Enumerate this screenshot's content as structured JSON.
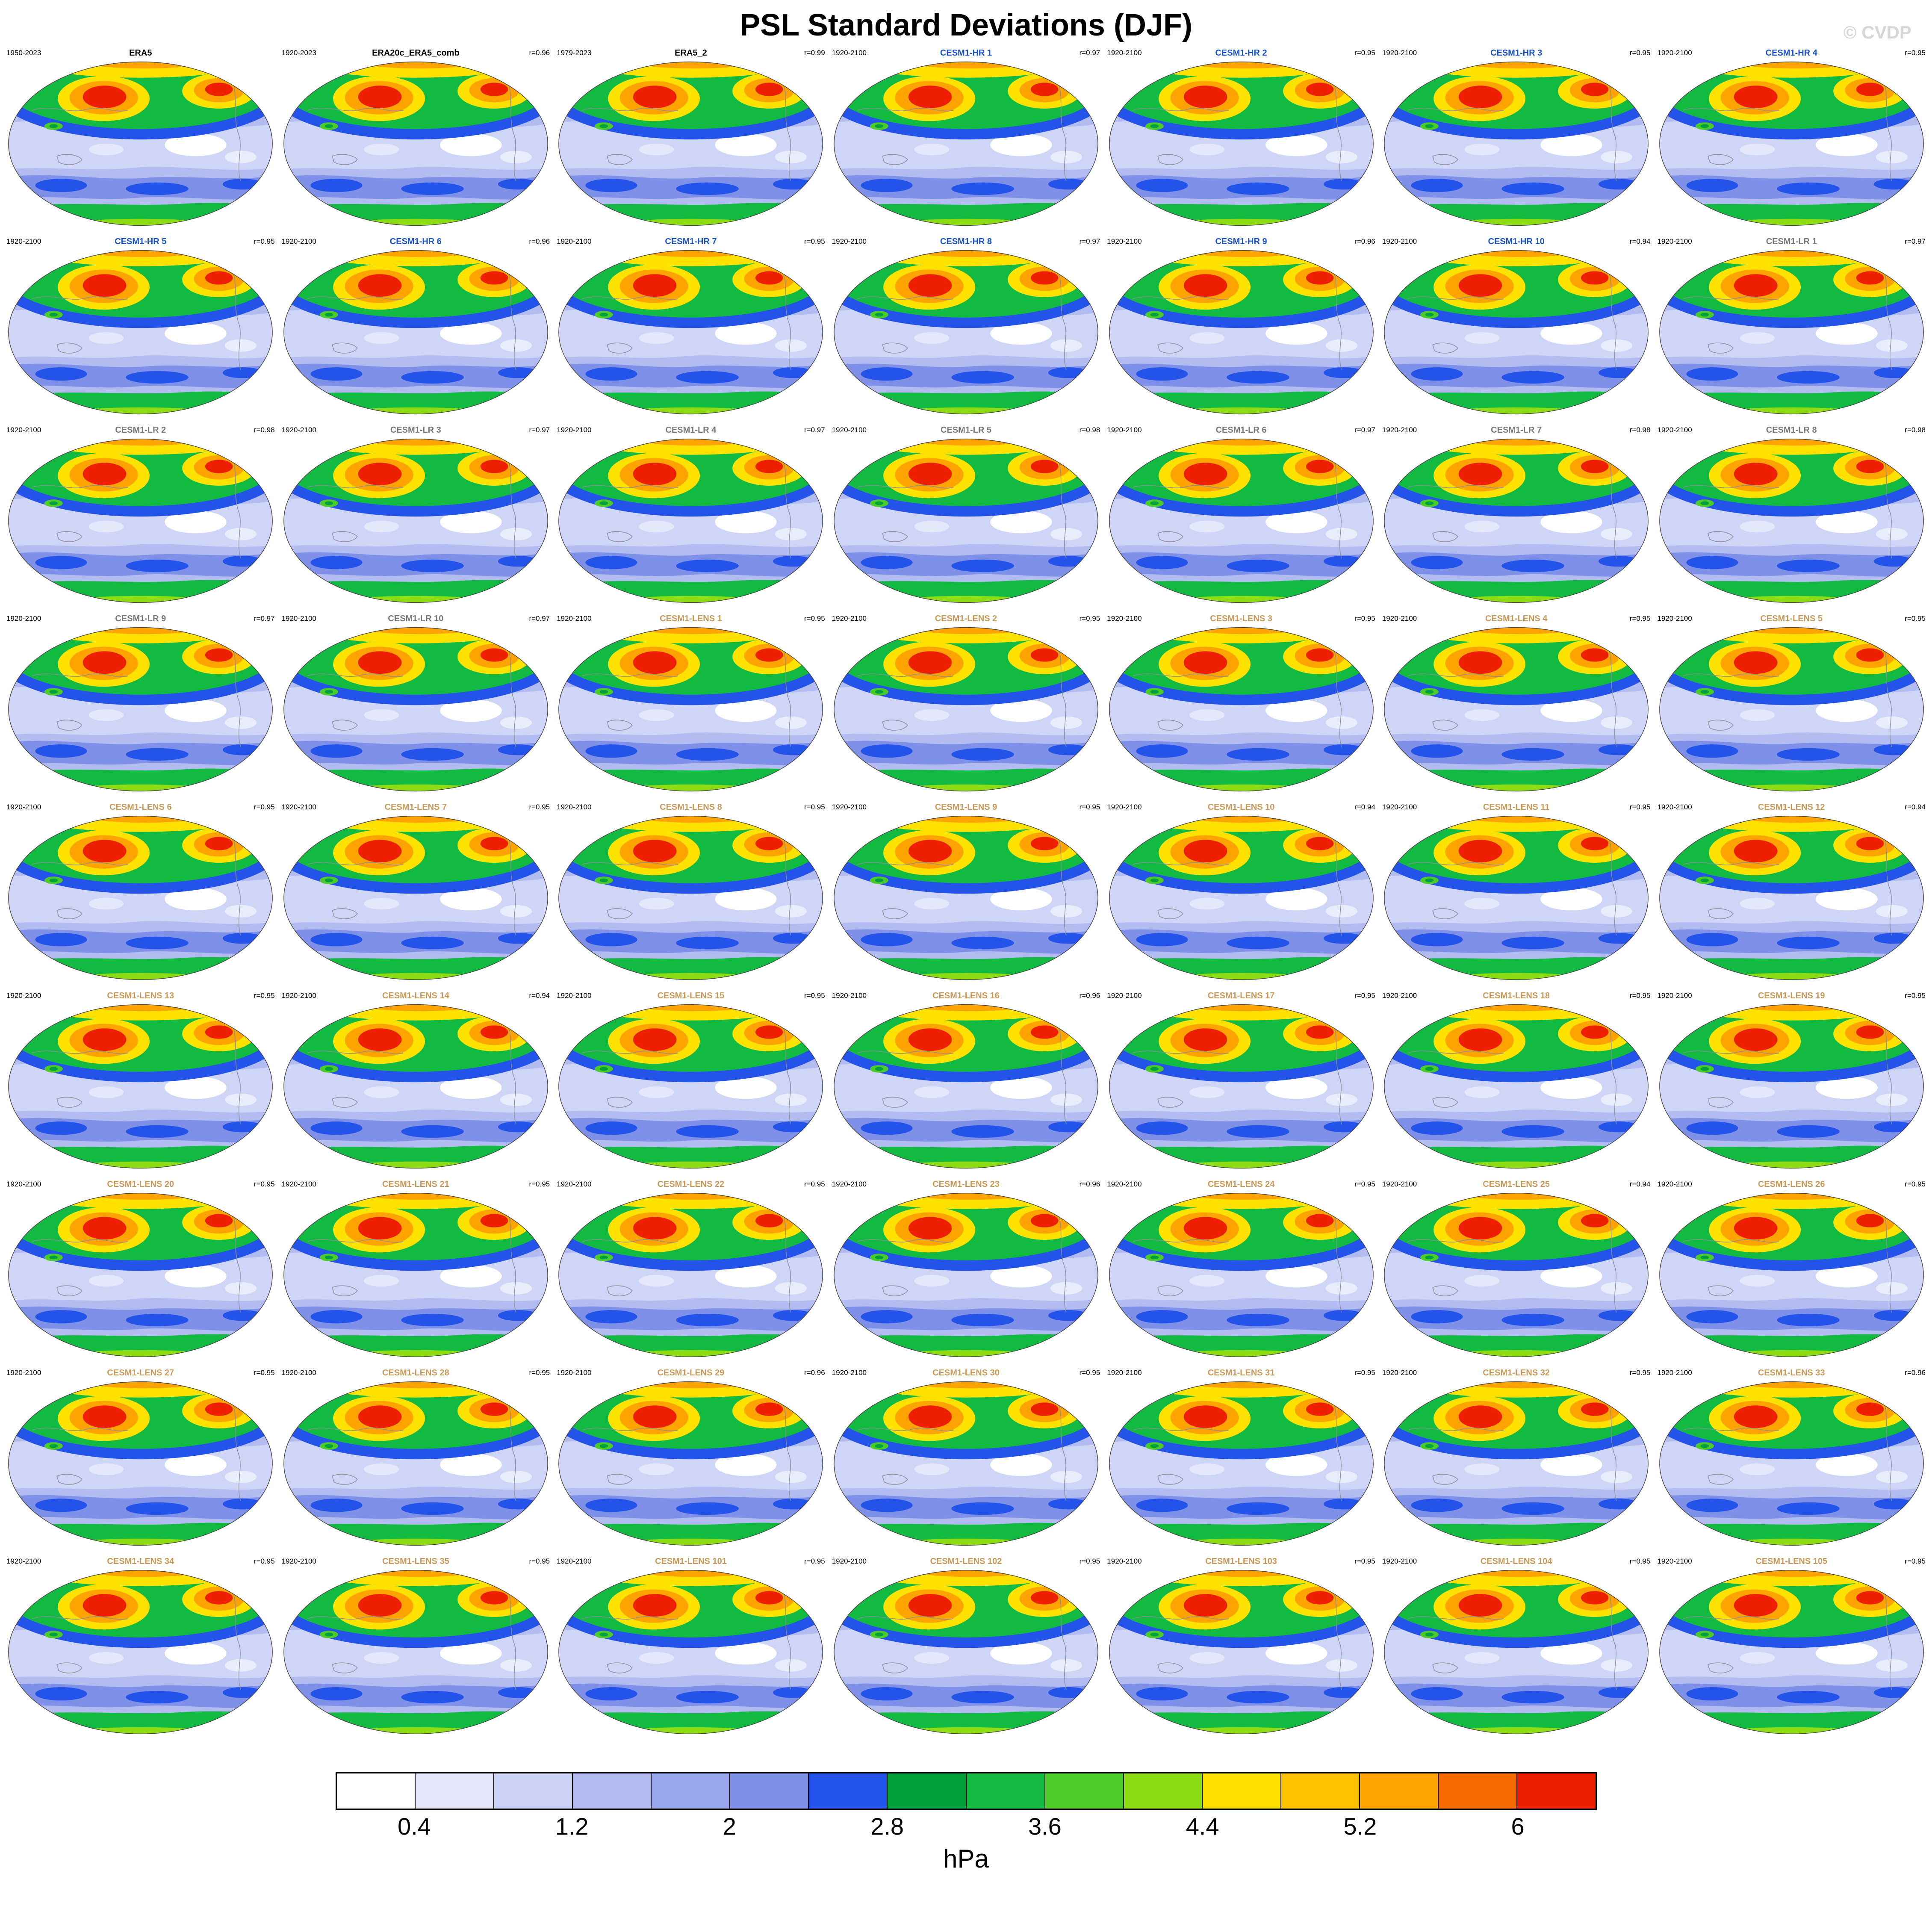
{
  "title": "PSL Standard Deviations (DJF)",
  "watermark": "© CVDP",
  "r_prefix": "r=",
  "group_colors": {
    "obs": "#000000",
    "hr": "#1a52c8",
    "lr": "#777777",
    "lens": "#c89a5a"
  },
  "colorbar": {
    "unit": "hPa",
    "segments": 16,
    "colors": [
      "#ffffff",
      "#e6e9fb",
      "#ccd3f6",
      "#b2bcf1",
      "#98a6ec",
      "#7e90e8",
      "#2453ea",
      "#00a03c",
      "#12ba42",
      "#4ccc28",
      "#8edc14",
      "#ffe200",
      "#ffc100",
      "#ffa300",
      "#f66a00",
      "#ee1e00"
    ],
    "tick_labels": [
      "0.4",
      "1.2",
      "2",
      "2.8",
      "3.6",
      "4.4",
      "5.2",
      "6"
    ],
    "tick_positions": [
      1,
      3,
      5,
      7,
      9,
      11,
      13,
      15
    ]
  },
  "chart_data": {
    "type": "heatmap",
    "title": "PSL Standard Deviations (DJF)",
    "subtitle": "Multi-panel global map figure (CVDP output): sea level pressure standard deviation, DJF season",
    "unit": "hPa",
    "projection": "global oval (Winkel tripel style) map per panel",
    "contour_levels": [
      0.4,
      0.8,
      1.2,
      1.6,
      2,
      2.4,
      2.8,
      3.2,
      3.6,
      4,
      4.4,
      4.8,
      5.2,
      5.6,
      6
    ],
    "colorbar_tick_labels": [
      "0.4",
      "1.2",
      "2",
      "2.8",
      "3.6",
      "4.4",
      "5.2",
      "6"
    ],
    "grid": {
      "rows": 9,
      "cols": 7
    },
    "panels": [
      {
        "name": "ERA5",
        "years": "1950-2023",
        "r": null,
        "group": "obs"
      },
      {
        "name": "ERA20c_ERA5_comb",
        "years": "1920-2023",
        "r": 0.96,
        "group": "obs"
      },
      {
        "name": "ERA5_2",
        "years": "1979-2023",
        "r": 0.99,
        "group": "obs"
      },
      {
        "name": "CESM1-HR 1",
        "years": "1920-2100",
        "r": 0.97,
        "group": "hr"
      },
      {
        "name": "CESM1-HR 2",
        "years": "1920-2100",
        "r": 0.95,
        "group": "hr"
      },
      {
        "name": "CESM1-HR 3",
        "years": "1920-2100",
        "r": 0.95,
        "group": "hr"
      },
      {
        "name": "CESM1-HR 4",
        "years": "1920-2100",
        "r": 0.95,
        "group": "hr"
      },
      {
        "name": "CESM1-HR 5",
        "years": "1920-2100",
        "r": 0.95,
        "group": "hr"
      },
      {
        "name": "CESM1-HR 6",
        "years": "1920-2100",
        "r": 0.96,
        "group": "hr"
      },
      {
        "name": "CESM1-HR 7",
        "years": "1920-2100",
        "r": 0.95,
        "group": "hr"
      },
      {
        "name": "CESM1-HR 8",
        "years": "1920-2100",
        "r": 0.97,
        "group": "hr"
      },
      {
        "name": "CESM1-HR 9",
        "years": "1920-2100",
        "r": 0.96,
        "group": "hr"
      },
      {
        "name": "CESM1-HR 10",
        "years": "1920-2100",
        "r": 0.94,
        "group": "hr"
      },
      {
        "name": "CESM1-LR 1",
        "years": "1920-2100",
        "r": 0.97,
        "group": "lr"
      },
      {
        "name": "CESM1-LR 2",
        "years": "1920-2100",
        "r": 0.98,
        "group": "lr"
      },
      {
        "name": "CESM1-LR 3",
        "years": "1920-2100",
        "r": 0.97,
        "group": "lr"
      },
      {
        "name": "CESM1-LR 4",
        "years": "1920-2100",
        "r": 0.97,
        "group": "lr"
      },
      {
        "name": "CESM1-LR 5",
        "years": "1920-2100",
        "r": 0.98,
        "group": "lr"
      },
      {
        "name": "CESM1-LR 6",
        "years": "1920-2100",
        "r": 0.97,
        "group": "lr"
      },
      {
        "name": "CESM1-LR 7",
        "years": "1920-2100",
        "r": 0.98,
        "group": "lr"
      },
      {
        "name": "CESM1-LR 8",
        "years": "1920-2100",
        "r": 0.98,
        "group": "lr"
      },
      {
        "name": "CESM1-LR 9",
        "years": "1920-2100",
        "r": 0.97,
        "group": "lr"
      },
      {
        "name": "CESM1-LR 10",
        "years": "1920-2100",
        "r": 0.97,
        "group": "lr"
      },
      {
        "name": "CESM1-LENS 1",
        "years": "1920-2100",
        "r": 0.95,
        "group": "lens"
      },
      {
        "name": "CESM1-LENS 2",
        "years": "1920-2100",
        "r": 0.95,
        "group": "lens"
      },
      {
        "name": "CESM1-LENS 3",
        "years": "1920-2100",
        "r": 0.95,
        "group": "lens"
      },
      {
        "name": "CESM1-LENS 4",
        "years": "1920-2100",
        "r": 0.95,
        "group": "lens"
      },
      {
        "name": "CESM1-LENS 5",
        "years": "1920-2100",
        "r": 0.95,
        "group": "lens"
      },
      {
        "name": "CESM1-LENS 6",
        "years": "1920-2100",
        "r": 0.95,
        "group": "lens"
      },
      {
        "name": "CESM1-LENS 7",
        "years": "1920-2100",
        "r": 0.95,
        "group": "lens"
      },
      {
        "name": "CESM1-LENS 8",
        "years": "1920-2100",
        "r": 0.95,
        "group": "lens"
      },
      {
        "name": "CESM1-LENS 9",
        "years": "1920-2100",
        "r": 0.95,
        "group": "lens"
      },
      {
        "name": "CESM1-LENS 10",
        "years": "1920-2100",
        "r": 0.94,
        "group": "lens"
      },
      {
        "name": "CESM1-LENS 11",
        "years": "1920-2100",
        "r": 0.95,
        "group": "lens"
      },
      {
        "name": "CESM1-LENS 12",
        "years": "1920-2100",
        "r": 0.94,
        "group": "lens"
      },
      {
        "name": "CESM1-LENS 13",
        "years": "1920-2100",
        "r": 0.95,
        "group": "lens"
      },
      {
        "name": "CESM1-LENS 14",
        "years": "1920-2100",
        "r": 0.94,
        "group": "lens"
      },
      {
        "name": "CESM1-LENS 15",
        "years": "1920-2100",
        "r": 0.95,
        "group": "lens"
      },
      {
        "name": "CESM1-LENS 16",
        "years": "1920-2100",
        "r": 0.96,
        "group": "lens"
      },
      {
        "name": "CESM1-LENS 17",
        "years": "1920-2100",
        "r": 0.95,
        "group": "lens"
      },
      {
        "name": "CESM1-LENS 18",
        "years": "1920-2100",
        "r": 0.95,
        "group": "lens"
      },
      {
        "name": "CESM1-LENS 19",
        "years": "1920-2100",
        "r": 0.95,
        "group": "lens"
      },
      {
        "name": "CESM1-LENS 20",
        "years": "1920-2100",
        "r": 0.95,
        "group": "lens"
      },
      {
        "name": "CESM1-LENS 21",
        "years": "1920-2100",
        "r": 0.95,
        "group": "lens"
      },
      {
        "name": "CESM1-LENS 22",
        "years": "1920-2100",
        "r": 0.95,
        "group": "lens"
      },
      {
        "name": "CESM1-LENS 23",
        "years": "1920-2100",
        "r": 0.96,
        "group": "lens"
      },
      {
        "name": "CESM1-LENS 24",
        "years": "1920-2100",
        "r": 0.95,
        "group": "lens"
      },
      {
        "name": "CESM1-LENS 25",
        "years": "1920-2100",
        "r": 0.94,
        "group": "lens"
      },
      {
        "name": "CESM1-LENS 26",
        "years": "1920-2100",
        "r": 0.95,
        "group": "lens"
      },
      {
        "name": "CESM1-LENS 27",
        "years": "1920-2100",
        "r": 0.95,
        "group": "lens"
      },
      {
        "name": "CESM1-LENS 28",
        "years": "1920-2100",
        "r": 0.95,
        "group": "lens"
      },
      {
        "name": "CESM1-LENS 29",
        "years": "1920-2100",
        "r": 0.96,
        "group": "lens"
      },
      {
        "name": "CESM1-LENS 30",
        "years": "1920-2100",
        "r": 0.95,
        "group": "lens"
      },
      {
        "name": "CESM1-LENS 31",
        "years": "1920-2100",
        "r": 0.95,
        "group": "lens"
      },
      {
        "name": "CESM1-LENS 32",
        "years": "1920-2100",
        "r": 0.95,
        "group": "lens"
      },
      {
        "name": "CESM1-LENS 33",
        "years": "1920-2100",
        "r": 0.96,
        "group": "lens"
      },
      {
        "name": "CESM1-LENS 34",
        "years": "1920-2100",
        "r": 0.95,
        "group": "lens"
      },
      {
        "name": "CESM1-LENS 35",
        "years": "1920-2100",
        "r": 0.95,
        "group": "lens"
      },
      {
        "name": "CESM1-LENS 101",
        "years": "1920-2100",
        "r": 0.95,
        "group": "lens"
      },
      {
        "name": "CESM1-LENS 102",
        "years": "1920-2100",
        "r": 0.95,
        "group": "lens"
      },
      {
        "name": "CESM1-LENS 103",
        "years": "1920-2100",
        "r": 0.95,
        "group": "lens"
      },
      {
        "name": "CESM1-LENS 104",
        "years": "1920-2100",
        "r": 0.95,
        "group": "lens"
      },
      {
        "name": "CESM1-LENS 105",
        "years": "1920-2100",
        "r": 0.95,
        "group": "lens"
      }
    ]
  }
}
